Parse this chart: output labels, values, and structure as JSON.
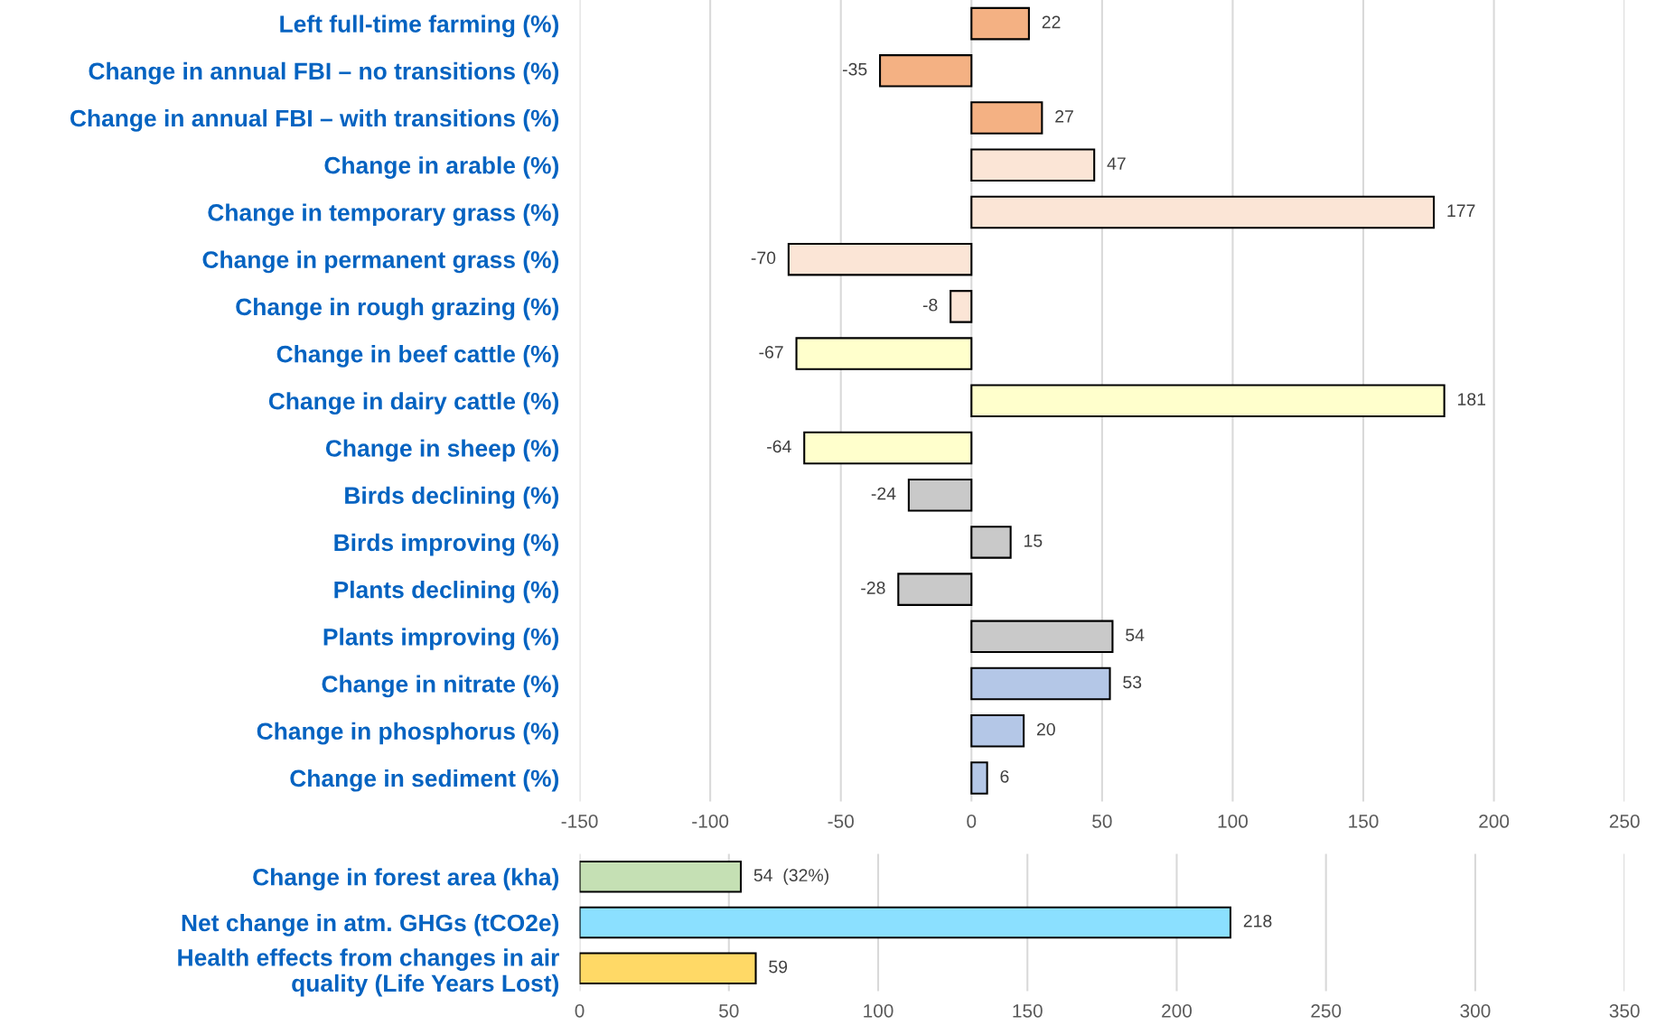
{
  "chart_data": [
    {
      "type": "bar",
      "orientation": "horizontal",
      "categories": [
        "Left full-time farming (%)",
        "Change in annual FBI – no transitions (%)",
        "Change in annual FBI – with transitions (%)",
        "Change in arable (%)",
        "Change in temporary grass (%)",
        "Change in permanent grass (%)",
        "Change in rough grazing (%)",
        "Change in beef cattle (%)",
        "Change in dairy cattle (%)",
        "Change in sheep (%)",
        "Birds declining (%)",
        "Birds improving (%)",
        "Plants declining (%)",
        "Plants improving (%)",
        "Change in nitrate (%)",
        "Change in phosphorus (%)",
        "Change in sediment (%)"
      ],
      "values": [
        22,
        -35,
        27,
        47,
        177,
        -70,
        -8,
        -67,
        181,
        -64,
        -24,
        15,
        -28,
        54,
        53,
        20,
        6
      ],
      "colors": [
        "#f4b183",
        "#f4b183",
        "#f4b183",
        "#fbe5d6",
        "#fbe5d6",
        "#fbe5d6",
        "#fbe5d6",
        "#ffffcc",
        "#ffffcc",
        "#ffffcc",
        "#c9c9c9",
        "#c9c9c9",
        "#c9c9c9",
        "#c9c9c9",
        "#b4c7e7",
        "#b4c7e7",
        "#b4c7e7"
      ],
      "xlim": [
        -150,
        250
      ],
      "xticks": [
        -150,
        -100,
        -50,
        0,
        50,
        100,
        150,
        200,
        250
      ],
      "grid": "x",
      "data_labels": true
    },
    {
      "type": "bar",
      "orientation": "horizontal",
      "categories": [
        "Change in forest area (kha)",
        "Net change in atm. GHGs (tCO2e)",
        "Health effects from changes in air\nquality (Life Years Lost)"
      ],
      "values": [
        54,
        218,
        59
      ],
      "colors": [
        "#c5e0b4",
        "#8be0ff",
        "#ffd966"
      ],
      "value_labels": [
        "54  (32%)",
        "218",
        "59"
      ],
      "xlim": [
        0,
        350
      ],
      "xticks": [
        0,
        50,
        100,
        150,
        200,
        250,
        300,
        350
      ],
      "grid": "x"
    }
  ]
}
